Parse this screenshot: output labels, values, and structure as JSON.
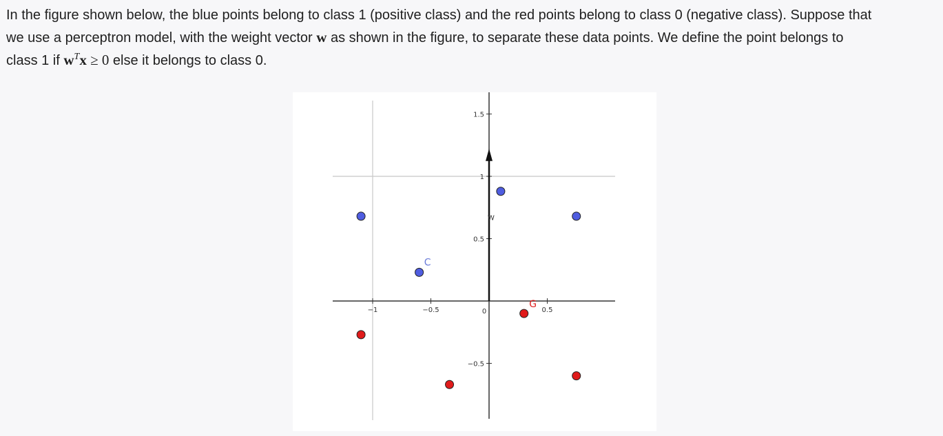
{
  "question": {
    "line1": "In the figure shown below, the blue points belong to class 1 (positive class) and the red points belong to class 0 (negative class). Suppose that",
    "line2_pre": "we use a perceptron model, with the weight vector ",
    "w_symbol": "w",
    "line2_post": " as shown in the figure, to separate these data points. We define the point belongs to",
    "line3_pre": "class 1 if ",
    "sup_T": "T",
    "x_symbol": "x",
    "geq": " ≥ ",
    "zero": "0",
    "line3_post": " else it belongs to class 0."
  },
  "colors": {
    "positive": "#4f5de0",
    "negative": "#e01b1b",
    "point_stroke": "#222222",
    "axis": "#333333",
    "gridline": "#c8c8c8",
    "label_blue": "#6a7bd8",
    "label_red": "#e02020"
  },
  "chart_data": {
    "type": "scatter",
    "xlim": [
      -1.15,
      0.5
    ],
    "ylim": [
      -0.9,
      1.6
    ],
    "x_ticks": [
      {
        "value": -1,
        "label": "−1"
      },
      {
        "value": -0.5,
        "label": "−0.5"
      },
      {
        "value": 0,
        "label": "0"
      },
      {
        "value": 0.5,
        "label": "0.5"
      }
    ],
    "y_ticks": [
      {
        "value": 1.5,
        "label": "1.5"
      },
      {
        "value": 1,
        "label": "1"
      },
      {
        "value": 0.5,
        "label": "0.5"
      },
      {
        "value": -0.5,
        "label": "−0.5"
      }
    ],
    "reference_lines": {
      "vertical_x": -1,
      "horizontal_y": 1
    },
    "vector": {
      "label": "W",
      "from": [
        0,
        0
      ],
      "to": [
        0,
        1.2
      ]
    },
    "series": [
      {
        "name": "class 1",
        "color": "#4f5de0",
        "points": [
          {
            "x": -1.1,
            "y": 0.68,
            "label": ""
          },
          {
            "x": -0.6,
            "y": 0.23,
            "label": "C"
          },
          {
            "x": 0.1,
            "y": 0.88,
            "label": ""
          },
          {
            "x": 0.75,
            "y": 0.68,
            "label": ""
          }
        ]
      },
      {
        "name": "class 0",
        "color": "#e01b1b",
        "points": [
          {
            "x": -1.1,
            "y": -0.27,
            "label": ""
          },
          {
            "x": -0.34,
            "y": -0.67,
            "label": ""
          },
          {
            "x": 0.3,
            "y": -0.1,
            "label": "G"
          },
          {
            "x": 0.75,
            "y": -0.6,
            "label": ""
          }
        ]
      }
    ]
  }
}
